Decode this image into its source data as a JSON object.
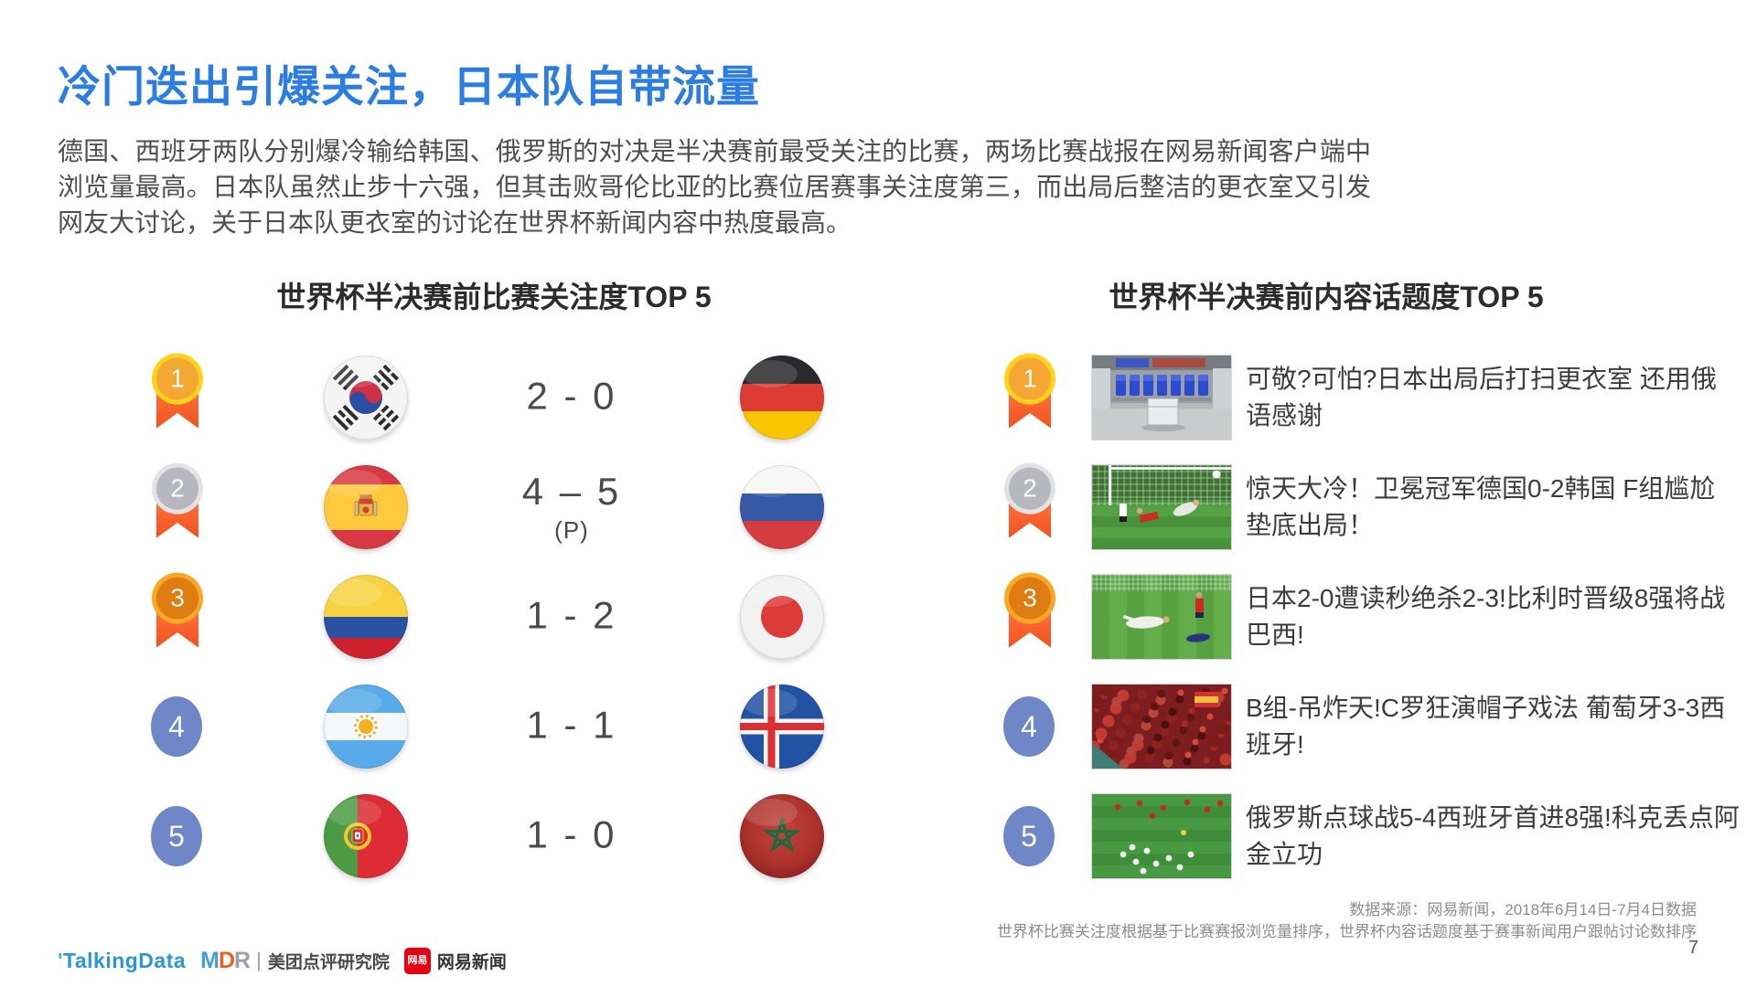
{
  "slide": {
    "title": "冷门迭出引爆关注，日本队自带流量",
    "paragraph": "德国、西班牙两队分别爆冷输给韩国、俄罗斯的对决是半决赛前最受关注的比赛，两场比赛战报在网易新闻客户端中浏览量最高。日本队虽然止步十六强，但其击败哥伦比亚的比赛位居赛事关注度第三，而出局后整洁的更衣室又引发网友大讨论，关于日本队更衣室的讨论在世界杯新闻内容中热度最高。",
    "page_number": "7"
  },
  "match_panel": {
    "heading": "世界杯半决赛前比赛关注度TOP 5",
    "rows": [
      {
        "rank": "1",
        "team_a": "south-korea",
        "score": "2 - 0",
        "score_note": "",
        "team_b": "germany"
      },
      {
        "rank": "2",
        "team_a": "spain",
        "score": "4 – 5",
        "score_note": "(P)",
        "team_b": "russia"
      },
      {
        "rank": "3",
        "team_a": "colombia",
        "score": "1 - 2",
        "score_note": "",
        "team_b": "japan"
      },
      {
        "rank": "4",
        "team_a": "argentina",
        "score": "1 - 1",
        "score_note": "",
        "team_b": "iceland"
      },
      {
        "rank": "5",
        "team_a": "portugal",
        "score": "1 - 0",
        "score_note": "",
        "team_b": "morocco"
      }
    ]
  },
  "topic_panel": {
    "heading": "世界杯半决赛前内容话题度TOP 5",
    "rows": [
      {
        "rank": "1",
        "thumbnail": "locker-room",
        "headline": "可敬?可怕?日本出局后打扫更衣室 还用俄语感谢"
      },
      {
        "rank": "2",
        "thumbnail": "goal-upset",
        "headline": "惊天大冷！卫冕冠军德国0-2韩国 F组尴尬垫底出局！"
      },
      {
        "rank": "3",
        "thumbnail": "last-second-goal",
        "headline": "日本2-0遭读秒绝杀2-3!比利时晋级8强将战巴西!"
      },
      {
        "rank": "4",
        "thumbnail": "red-crowd",
        "headline": "B组-吊炸天!C罗狂演帽子戏法 葡萄牙3-3西班牙!"
      },
      {
        "rank": "5",
        "thumbnail": "penalty-celebration",
        "headline": "俄罗斯点球战5-4西班牙首进8强!科克丢点阿金立功"
      }
    ]
  },
  "footer": {
    "source_line1": "数据来源：网易新闻，2018年6月14日-7月4日数据",
    "source_line2": "世界杯比赛关注度根据基于比赛赛报浏览量排序，世界杯内容话题度基于赛事新闻用户跟帖讨论数排序",
    "logos": {
      "talkingdata_apostrophe": "'",
      "talkingdata": "TalkingData",
      "mdr_m": "M",
      "mdr_d": "D",
      "mdr_r": "R",
      "mdr_divider": "|",
      "meituan": "美团点评研究院",
      "netease_badge": "网易",
      "netease": "网易新闻"
    }
  },
  "colors": {
    "title_blue": "#2b7de1",
    "rank_badge_blue": "#6f87c7",
    "medal_gold": "#f5a733",
    "medal_silver": "#b7b7bf",
    "medal_bronze": "#de7d12",
    "ribbon_red": "#f4511e"
  }
}
